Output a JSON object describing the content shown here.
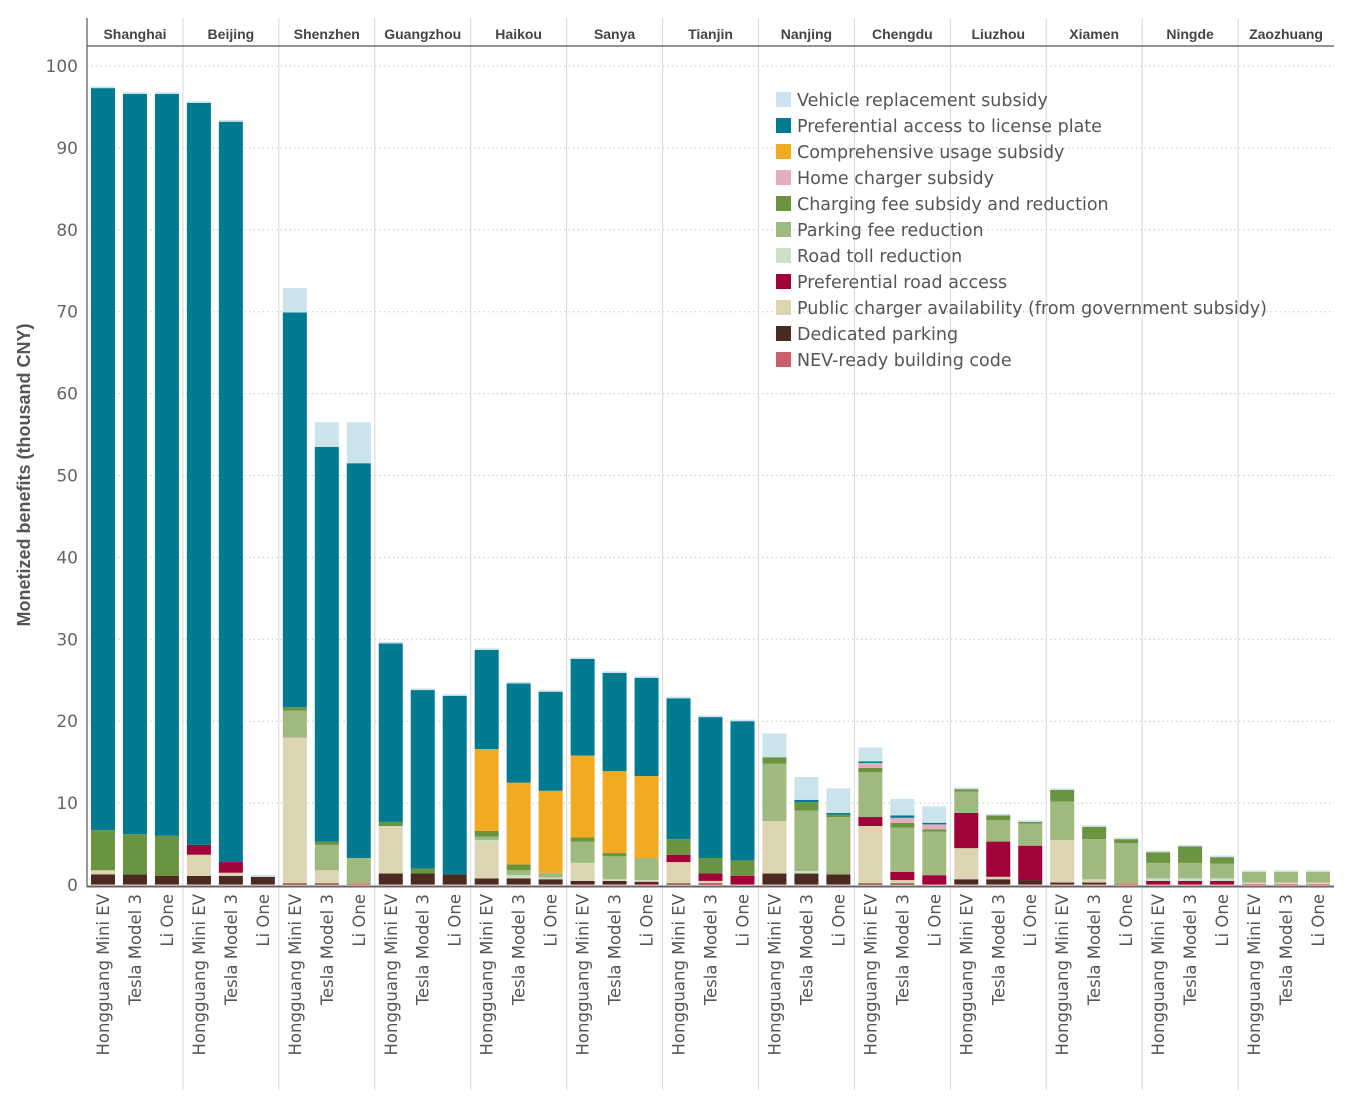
{
  "chart_data": {
    "type": "bar",
    "stacked": true,
    "title": "",
    "xlabel": "",
    "ylabel": "Monetized benefits (thousand CNY)",
    "ylim": [
      0,
      100
    ],
    "yticks": [
      0,
      10,
      20,
      30,
      40,
      50,
      60,
      70,
      80,
      90,
      100
    ],
    "grid": "horizontal dotted",
    "legend_position": "top-right",
    "groups": [
      "Shanghai",
      "Beijing",
      "Shenzhen",
      "Guangzhou",
      "Haikou",
      "Sanya",
      "Tianjin",
      "Nanjing",
      "Chengdu",
      "Liuzhou",
      "Xiamen",
      "Ningde",
      "Zaozhuang"
    ],
    "models": [
      "Hongguang Mini EV",
      "Tesla Model 3",
      "Li One"
    ],
    "series": [
      {
        "name": "NEV-ready building code",
        "color": "#c8616a",
        "values": [
          [
            0.1,
            0.1,
            0.1
          ],
          [
            0.1,
            0.1,
            0.1
          ],
          [
            0.1,
            0.1,
            0.1
          ],
          [
            0.1,
            0.1,
            0.1
          ],
          [
            0.1,
            0.1,
            0.1
          ],
          [
            0.1,
            0.1,
            0.1
          ],
          [
            0.1,
            0.1,
            0.1
          ],
          [
            0.1,
            0.1,
            0.1
          ],
          [
            0.1,
            0.1,
            0.1
          ],
          [
            0.1,
            0.1,
            0.1
          ],
          [
            0.1,
            0.1,
            0.1
          ],
          [
            0.1,
            0.1,
            0.1
          ],
          [
            0.1,
            0.1,
            0.1
          ]
        ]
      },
      {
        "name": "Dedicated parking",
        "color": "#4b2a22",
        "values": [
          [
            1.2,
            1.2,
            1.0
          ],
          [
            1.0,
            1.0,
            0.9
          ],
          [
            0.1,
            0.1,
            0.0
          ],
          [
            1.3,
            1.3,
            1.2
          ],
          [
            0.7,
            0.7,
            0.6
          ],
          [
            0.4,
            0.4,
            0.3
          ],
          [
            0.1,
            0.1,
            0.0
          ],
          [
            1.3,
            1.3,
            1.2
          ],
          [
            0.1,
            0.1,
            0.0
          ],
          [
            0.6,
            0.6,
            0.5
          ],
          [
            0.2,
            0.2,
            0.0
          ],
          [
            0.0,
            0.0,
            0.0
          ],
          [
            0.0,
            0.0,
            0.0
          ]
        ]
      },
      {
        "name": "Public charger availability (from government subsidy)",
        "color": "#ddd5b2",
        "values": [
          [
            0.5,
            0.0,
            0.0
          ],
          [
            2.6,
            0.4,
            0.0
          ],
          [
            17.8,
            1.6,
            0.0
          ],
          [
            5.6,
            0.0,
            0.0
          ],
          [
            4.4,
            0.0,
            0.0
          ],
          [
            2.0,
            0.0,
            0.0
          ],
          [
            2.6,
            0.3,
            0.0
          ],
          [
            6.4,
            0.0,
            0.0
          ],
          [
            7.0,
            0.4,
            0.0
          ],
          [
            3.8,
            0.3,
            0.0
          ],
          [
            5.2,
            0.4,
            0.0
          ],
          [
            0.0,
            0.0,
            0.0
          ],
          [
            0.0,
            0.0,
            0.0
          ]
        ]
      },
      {
        "name": "Preferential road access",
        "color": "#a10239",
        "values": [
          [
            0.0,
            0.0,
            0.0
          ],
          [
            1.2,
            1.3,
            0.0
          ],
          [
            0.0,
            0.0,
            0.0
          ],
          [
            0.0,
            0.0,
            0.0
          ],
          [
            0.0,
            0.0,
            0.0
          ],
          [
            0.0,
            0.0,
            0.0
          ],
          [
            0.9,
            0.9,
            1.0
          ],
          [
            0.0,
            0.0,
            0.0
          ],
          [
            1.1,
            1.0,
            1.1
          ],
          [
            4.3,
            4.3,
            4.2
          ],
          [
            0.0,
            0.0,
            0.0
          ],
          [
            0.4,
            0.4,
            0.4
          ],
          [
            0.0,
            0.0,
            0.0
          ]
        ]
      },
      {
        "name": "Road toll reduction",
        "color": "#cfdfc3",
        "values": [
          [
            0.0,
            0.0,
            0.0
          ],
          [
            0.0,
            0.0,
            0.0
          ],
          [
            0.0,
            0.0,
            0.0
          ],
          [
            0.2,
            0.0,
            0.0
          ],
          [
            0.3,
            0.4,
            0.2
          ],
          [
            0.2,
            0.2,
            0.2
          ],
          [
            0.0,
            0.0,
            0.0
          ],
          [
            0.0,
            0.3,
            0.0
          ],
          [
            0.0,
            0.0,
            0.0
          ],
          [
            0.0,
            0.0,
            0.0
          ],
          [
            0.0,
            0.0,
            0.0
          ],
          [
            0.3,
            0.3,
            0.3
          ],
          [
            0.2,
            0.2,
            0.2
          ]
        ]
      },
      {
        "name": "Parking fee reduction",
        "color": "#a0b97f",
        "values": [
          [
            0.0,
            0.0,
            0.0
          ],
          [
            0.0,
            0.0,
            0.0
          ],
          [
            3.3,
            3.1,
            3.2
          ],
          [
            0.0,
            0.0,
            0.0
          ],
          [
            0.4,
            0.6,
            0.6
          ],
          [
            2.6,
            2.8,
            2.7
          ],
          [
            0.0,
            0.0,
            0.0
          ],
          [
            7.0,
            7.4,
            7.0
          ],
          [
            5.5,
            5.4,
            5.3
          ],
          [
            2.6,
            2.6,
            2.7
          ],
          [
            4.7,
            4.9,
            5.0
          ],
          [
            1.9,
            1.9,
            1.8
          ],
          [
            1.3,
            1.3,
            1.3
          ]
        ]
      },
      {
        "name": "Charging fee subsidy and reduction",
        "color": "#6b9440",
        "values": [
          [
            4.9,
            4.9,
            4.9
          ],
          [
            0.0,
            0.0,
            0.0
          ],
          [
            0.4,
            0.4,
            0.0
          ],
          [
            0.5,
            0.6,
            0.0
          ],
          [
            0.7,
            0.7,
            0.0
          ],
          [
            0.5,
            0.4,
            0.0
          ],
          [
            1.9,
            1.9,
            1.9
          ],
          [
            0.8,
            1.0,
            0.3
          ],
          [
            0.5,
            0.6,
            0.3
          ],
          [
            0.3,
            0.6,
            0.2
          ],
          [
            1.4,
            1.5,
            0.5
          ],
          [
            1.3,
            2.0,
            0.8
          ],
          [
            0.0,
            0.0,
            0.0
          ]
        ]
      },
      {
        "name": "Home charger subsidy",
        "color": "#e3adc0",
        "values": [
          [
            0.0,
            0.0,
            0.0
          ],
          [
            0.0,
            0.0,
            0.0
          ],
          [
            0.0,
            0.0,
            0.0
          ],
          [
            0.0,
            0.0,
            0.0
          ],
          [
            0.0,
            0.0,
            0.0
          ],
          [
            0.0,
            0.0,
            0.0
          ],
          [
            0.0,
            0.0,
            0.0
          ],
          [
            0.0,
            0.0,
            0.0
          ],
          [
            0.6,
            0.6,
            0.6
          ],
          [
            0.0,
            0.0,
            0.0
          ],
          [
            0.0,
            0.0,
            0.0
          ],
          [
            0.0,
            0.0,
            0.0
          ],
          [
            0.0,
            0.0,
            0.0
          ]
        ]
      },
      {
        "name": "Comprehensive usage subsidy",
        "color": "#f0ab22",
        "values": [
          [
            0.0,
            0.0,
            0.0
          ],
          [
            0.0,
            0.0,
            0.0
          ],
          [
            0.0,
            0.0,
            0.0
          ],
          [
            0.0,
            0.0,
            0.0
          ],
          [
            10.0,
            10.0,
            10.0
          ],
          [
            10.0,
            10.0,
            10.0
          ],
          [
            0.0,
            0.0,
            0.0
          ],
          [
            0.0,
            0.0,
            0.0
          ],
          [
            0.0,
            0.0,
            0.0
          ],
          [
            0.0,
            0.0,
            0.0
          ],
          [
            0.0,
            0.0,
            0.0
          ],
          [
            0.0,
            0.0,
            0.0
          ],
          [
            0.0,
            0.0,
            0.0
          ]
        ]
      },
      {
        "name": "Preferential access to license plate",
        "color": "#027a8f",
        "values": [
          [
            90.6,
            90.4,
            90.6
          ],
          [
            90.6,
            90.4,
            0.0
          ],
          [
            48.2,
            48.2,
            48.2
          ],
          [
            21.8,
            21.8,
            21.8
          ],
          [
            12.1,
            12.1,
            12.1
          ],
          [
            11.8,
            12.0,
            12.0
          ],
          [
            17.2,
            17.2,
            17.0
          ],
          [
            0.0,
            0.3,
            0.2
          ],
          [
            0.2,
            0.3,
            0.2
          ],
          [
            0.0,
            0.0,
            0.0
          ],
          [
            0.0,
            0.0,
            0.0
          ],
          [
            0.0,
            0.0,
            0.0
          ],
          [
            0.0,
            0.0,
            0.0
          ]
        ]
      },
      {
        "name": "Vehicle replacement subsidy",
        "color": "#cbe3ea",
        "values": [
          [
            0.2,
            0.2,
            0.2
          ],
          [
            0.2,
            0.2,
            0.2
          ],
          [
            3.0,
            3.0,
            5.0
          ],
          [
            0.2,
            0.2,
            0.2
          ],
          [
            0.2,
            0.2,
            0.2
          ],
          [
            0.2,
            0.2,
            0.2
          ],
          [
            0.2,
            0.2,
            0.2
          ],
          [
            2.9,
            2.8,
            3.0
          ],
          [
            1.7,
            2.0,
            2.0
          ],
          [
            0.2,
            0.2,
            0.2
          ],
          [
            0.2,
            0.2,
            0.2
          ],
          [
            0.2,
            0.2,
            0.2
          ],
          [
            0.2,
            0.2,
            0.2
          ]
        ]
      }
    ],
    "legend_order": [
      "Vehicle replacement subsidy",
      "Preferential access to license plate",
      "Comprehensive usage subsidy",
      "Home charger subsidy",
      "Charging fee subsidy and reduction",
      "Parking fee reduction",
      "Road toll reduction",
      "Preferential road access",
      "Public charger availability (from government subsidy)",
      "Dedicated parking",
      "NEV-ready building code"
    ]
  }
}
